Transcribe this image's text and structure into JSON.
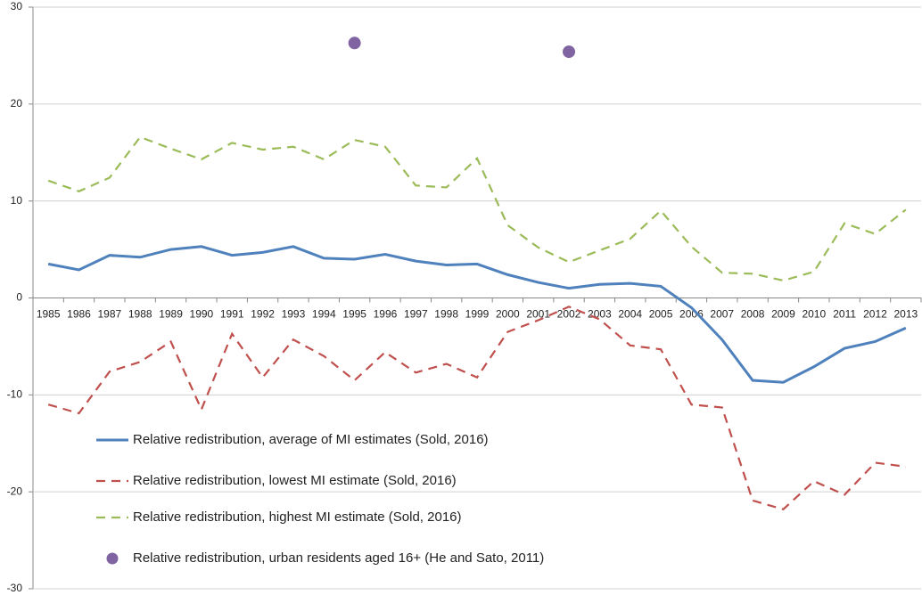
{
  "chart_data": {
    "type": "line",
    "categories": [
      "1985",
      "1986",
      "1987",
      "1988",
      "1989",
      "1990",
      "1991",
      "1992",
      "1993",
      "1994",
      "1995",
      "1996",
      "1997",
      "1998",
      "1999",
      "2000",
      "2001",
      "2002",
      "2003",
      "2004",
      "2005",
      "2006",
      "2007",
      "2008",
      "2009",
      "2010",
      "2011",
      "2012",
      "2013"
    ],
    "series": [
      {
        "name": "Relative redistribution, average of MI estimates (Sold, 2016)",
        "color": "#4f81bd",
        "style": "solid",
        "values": [
          3.5,
          2.9,
          4.4,
          4.2,
          5.0,
          5.3,
          4.4,
          4.7,
          5.3,
          4.1,
          4.0,
          4.5,
          3.8,
          3.4,
          3.5,
          2.4,
          1.6,
          1.0,
          1.4,
          1.5,
          1.2,
          -1.0,
          -4.3,
          -8.5,
          -8.7,
          -7.1,
          -5.2,
          -4.5,
          -3.1
        ]
      },
      {
        "name": "Relative redistribution, lowest MI estimate (Sold, 2016)",
        "color": "#c0504d",
        "style": "dashed",
        "values": [
          -11.0,
          -11.9,
          -7.6,
          -6.6,
          -4.5,
          -11.5,
          -3.7,
          -8.2,
          -4.3,
          -6.0,
          -8.5,
          -5.6,
          -7.7,
          -6.8,
          -8.2,
          -3.5,
          -2.3,
          -0.9,
          -2.2,
          -4.9,
          -5.3,
          -11.0,
          -11.3,
          -20.9,
          -21.8,
          -18.9,
          -20.3,
          -17.0,
          -17.4
        ]
      },
      {
        "name": "Relative redistribution, highest MI estimate (Sold, 2016)",
        "color": "#9bbb59",
        "style": "dashed",
        "values": [
          12.1,
          11.0,
          12.4,
          16.6,
          15.4,
          14.3,
          16.0,
          15.3,
          15.6,
          14.3,
          16.3,
          15.6,
          11.6,
          11.4,
          14.4,
          7.5,
          5.2,
          3.7,
          4.9,
          6.1,
          9.0,
          5.3,
          2.6,
          2.5,
          1.8,
          2.7,
          7.7,
          6.6,
          9.1
        ]
      },
      {
        "name": "Relative redistribution, urban residents aged 16+ (He and Sato, 2011)",
        "color": "#8064a2",
        "style": "marker",
        "values": [
          null,
          null,
          null,
          null,
          null,
          null,
          null,
          null,
          null,
          null,
          26.3,
          null,
          null,
          null,
          null,
          null,
          null,
          25.4,
          null,
          null,
          null,
          null,
          null,
          null,
          null,
          null,
          null,
          null,
          null
        ]
      }
    ],
    "ylim": [
      -30,
      30
    ],
    "yticks": [
      -30,
      -20,
      -10,
      0,
      10,
      20,
      30
    ],
    "grid": true,
    "legend": "lower-left"
  }
}
